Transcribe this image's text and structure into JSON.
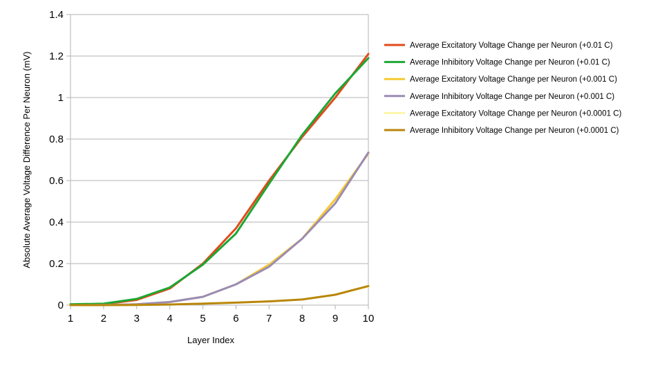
{
  "chart_data": {
    "type": "line",
    "title": "",
    "xlabel": "Layer Index",
    "ylabel": "Absolute Average Voltage Difference Per Neuron (mV)",
    "x": [
      1,
      2,
      3,
      4,
      5,
      6,
      7,
      8,
      9,
      10
    ],
    "xlim": [
      1,
      10
    ],
    "ylim": [
      0,
      1.4
    ],
    "yticks": [
      "0",
      "0.2",
      "0.4",
      "0.6",
      "0.8",
      "1",
      "1.2",
      "1.4"
    ],
    "xticks": [
      "1",
      "2",
      "3",
      "4",
      "5",
      "6",
      "7",
      "8",
      "9",
      "10"
    ],
    "grid": "horizontal",
    "legend_position": "right",
    "series": [
      {
        "name": "Average Excitatory Voltage Change per Neuron (+0.01 C)",
        "color": "#e24a1b",
        "values": [
          0.003,
          0.005,
          0.025,
          0.08,
          0.2,
          0.37,
          0.6,
          0.81,
          1.0,
          1.21
        ]
      },
      {
        "name": "Average Inhibitory Voltage Change per Neuron (+0.01 C)",
        "color": "#1aa833",
        "values": [
          0.004,
          0.007,
          0.03,
          0.085,
          0.195,
          0.345,
          0.585,
          0.82,
          1.02,
          1.19
        ]
      },
      {
        "name": "Average Excitatory Voltage Change per Neuron (+0.001 C)",
        "color": "#f6c931",
        "values": [
          0.0,
          0.001,
          0.004,
          0.015,
          0.04,
          0.1,
          0.195,
          0.32,
          0.51,
          0.73
        ]
      },
      {
        "name": "Average Inhibitory Voltage Change per Neuron (+0.001 C)",
        "color": "#9a8bb5",
        "values": [
          0.0,
          0.001,
          0.004,
          0.015,
          0.04,
          0.1,
          0.185,
          0.32,
          0.49,
          0.735
        ]
      },
      {
        "name": "Average Excitatory Voltage Change per Neuron (+0.0001 C)",
        "color": "#fdf6a8",
        "values": [
          0.0,
          0.0,
          0.001,
          0.003,
          0.007,
          0.012,
          0.018,
          0.027,
          0.05,
          0.09
        ]
      },
      {
        "name": "Average Inhibitory Voltage Change per Neuron (+0.0001 C)",
        "color": "#b8860b",
        "values": [
          0.0,
          0.0,
          0.001,
          0.003,
          0.007,
          0.012,
          0.018,
          0.027,
          0.05,
          0.092
        ]
      }
    ]
  }
}
